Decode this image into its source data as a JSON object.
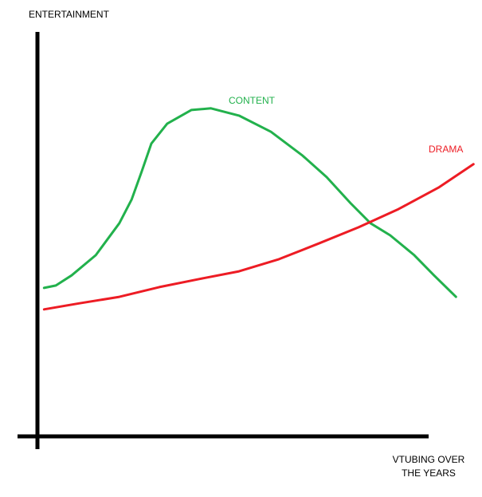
{
  "chart_data": {
    "type": "line",
    "y_label": "ENTERTAINMENT",
    "x_label": "VTUBING OVER THE YEARS",
    "xlim": [
      0,
      100
    ],
    "ylim": [
      0,
      100
    ],
    "series": [
      {
        "name": "CONTENT",
        "color": "#22b14c",
        "x": [
          1.5,
          4.2,
          7.8,
          13.3,
          18.7,
          21.5,
          23.8,
          26,
          29.6,
          35.1,
          39.6,
          46,
          53.3,
          60.5,
          66,
          71.5,
          76,
          80.5,
          86,
          90.5,
          95.5
        ],
        "values": [
          36.7,
          37.3,
          39.8,
          44.8,
          52.7,
          58.6,
          65.5,
          72.4,
          77.3,
          80.7,
          81.1,
          79.3,
          75.3,
          69.4,
          64.1,
          57.6,
          52.7,
          49.7,
          44.8,
          39.8,
          34.5
        ]
      },
      {
        "name": "DRAMA",
        "color": "#ed1c24",
        "x": [
          1.5,
          9.6,
          18.7,
          27.8,
          36.9,
          46,
          55.1,
          64.2,
          73.3,
          82.4,
          91.5,
          99.5
        ],
        "values": [
          31.4,
          32.9,
          34.5,
          36.9,
          38.9,
          40.8,
          43.8,
          47.7,
          51.7,
          56.2,
          61.5,
          67.3
        ]
      }
    ]
  }
}
